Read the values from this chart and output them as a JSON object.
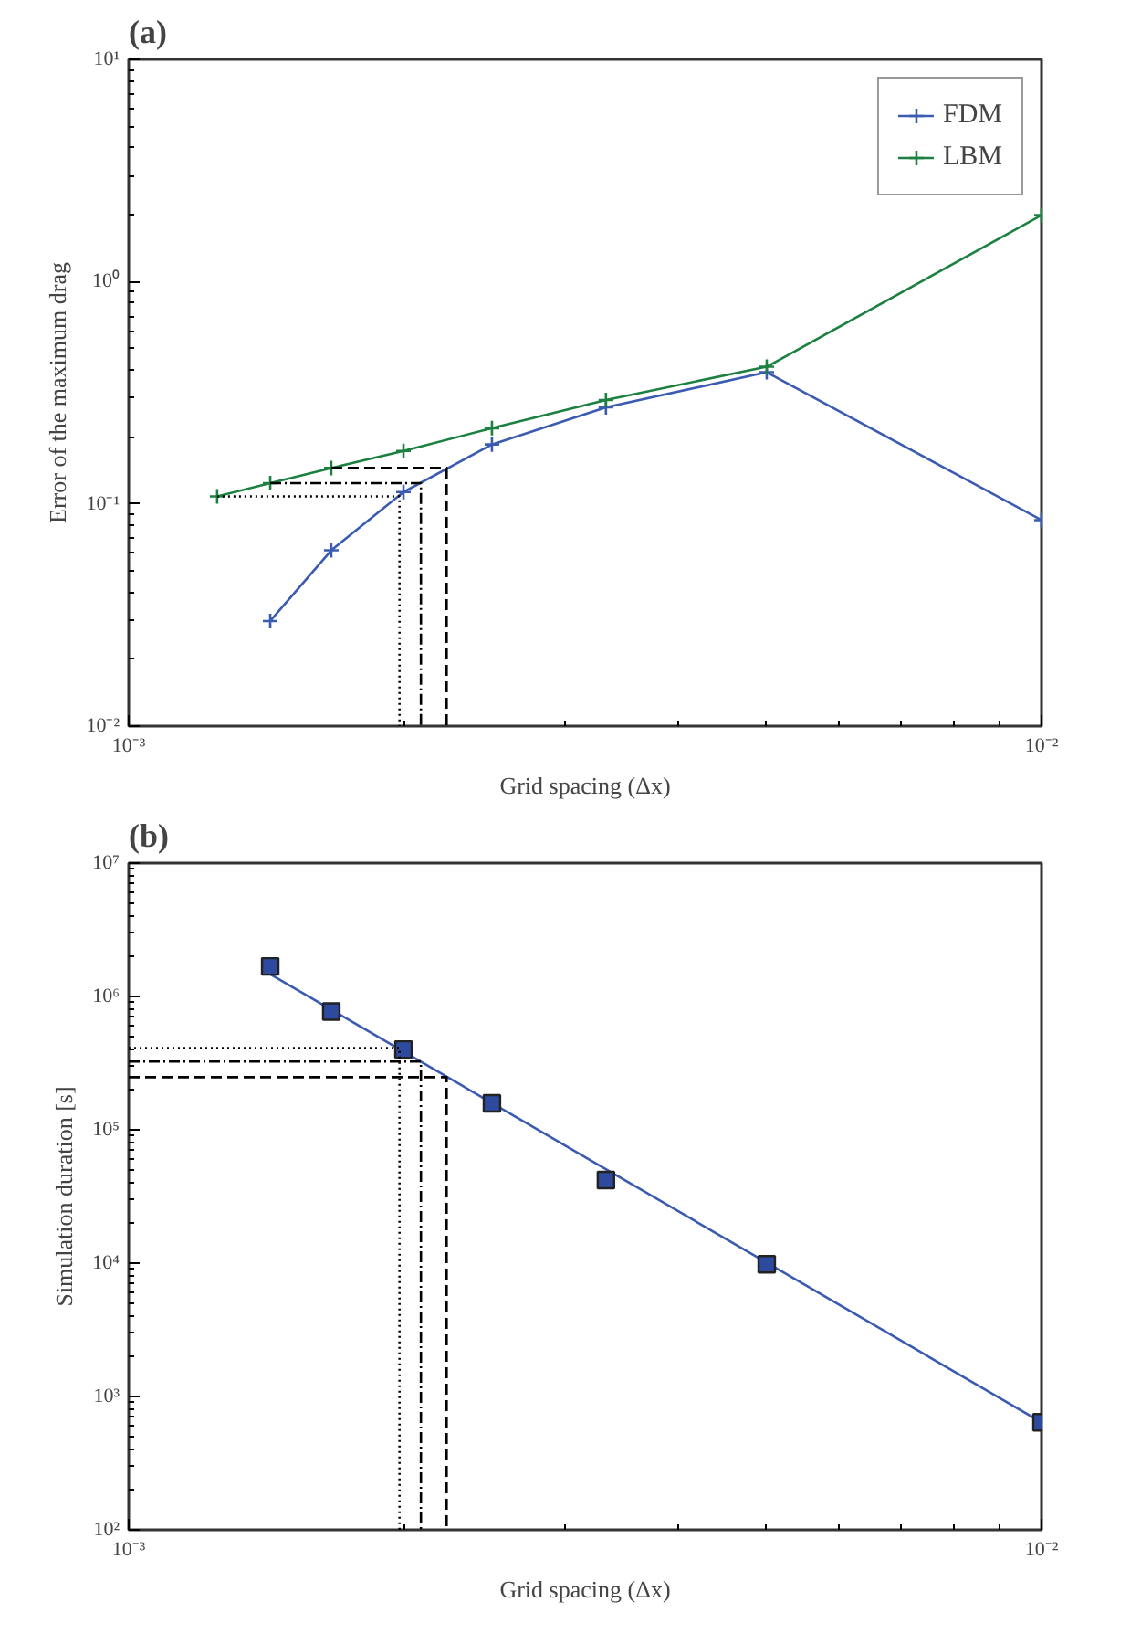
{
  "chart_data": [
    {
      "type": "line",
      "title": "(a)",
      "xlabel": "Grid spacing (Δx)",
      "ylabel": "Error of the maximum drag",
      "log": "xy",
      "grid": false,
      "legend": "top right",
      "xlim": [
        0.001,
        0.01
      ],
      "ylim": [
        0.01,
        10
      ],
      "xticks": [
        {
          "value": 0.001,
          "label": "10⁻³"
        },
        {
          "value": 0.01,
          "label": "10⁻²"
        }
      ],
      "yticks": [
        {
          "value": 0.01,
          "label": "10⁻²"
        },
        {
          "value": 0.1,
          "label": "10⁻¹"
        },
        {
          "value": 1,
          "label": "10⁰"
        },
        {
          "value": 10,
          "label": "10¹"
        }
      ],
      "series": [
        {
          "name": "FDM",
          "color": "#3a5bb0",
          "marker": "cross",
          "x": [
            0.001429,
            0.001667,
            0.002,
            0.0025,
            0.003333,
            0.005,
            0.01
          ],
          "values": [
            0.0297,
            0.0618,
            0.113,
            0.185,
            0.272,
            0.391,
            0.0845
          ]
        },
        {
          "name": "LBM",
          "color": "#1b8040",
          "marker": "cross",
          "x": [
            0.00125,
            0.001429,
            0.001667,
            0.002,
            0.0025,
            0.003333,
            0.005,
            0.01
          ],
          "values": [
            0.108,
            0.124,
            0.145,
            0.173,
            0.219,
            0.293,
            0.414,
            1.99
          ]
        },
        {
          "color": "#000000",
          "line_style": "dotted",
          "marker": "none",
          "x": [
            0.00125,
            0.00198,
            0.00198
          ],
          "values": [
            0.108,
            0.108,
            0.01
          ]
        },
        {
          "color": "#000000",
          "line_style": "dashdot",
          "marker": "none",
          "x": [
            0.001429,
            0.00209,
            0.00209
          ],
          "values": [
            0.124,
            0.124,
            0.01
          ]
        },
        {
          "color": "#000000",
          "line_style": "dashed",
          "marker": "none",
          "x": [
            0.001667,
            0.00223,
            0.00223
          ],
          "values": [
            0.145,
            0.145,
            0.01
          ]
        }
      ]
    },
    {
      "type": "line",
      "title": "(b)",
      "xlabel": "Grid spacing (Δx)",
      "ylabel": "Simulation duration [s]",
      "log": "xy",
      "grid": false,
      "xlim": [
        0.001,
        0.01
      ],
      "ylim": [
        100,
        10000000
      ],
      "xticks": [
        {
          "value": 0.001,
          "label": "10⁻³"
        },
        {
          "value": 0.01,
          "label": "10⁻²"
        }
      ],
      "yticks": [
        {
          "value": 100,
          "label": "10²"
        },
        {
          "value": 1000,
          "label": "10³"
        },
        {
          "value": 10000,
          "label": "10⁴"
        },
        {
          "value": 100000,
          "label": "10⁵"
        },
        {
          "value": 1000000,
          "label": "10⁶"
        },
        {
          "value": 10000000,
          "label": "10⁷"
        }
      ],
      "series": [
        {
          "type": "line",
          "color": "#3a5bb0",
          "marker": "none",
          "x": [
            0.001429,
            0.01
          ],
          "values": [
            1470000,
            640
          ]
        },
        {
          "type": "scatter",
          "color": "#2e4a9e",
          "marker": "square",
          "x": [
            0.001429,
            0.001667,
            0.002,
            0.0025,
            0.003333,
            0.005,
            0.01
          ],
          "values": [
            1680000,
            770000,
            400000,
            158000,
            42000,
            9800,
            640
          ]
        },
        {
          "color": "#000000",
          "line_style": "dotted",
          "marker": "none",
          "x": [
            0.001,
            0.00198,
            0.00198
          ],
          "values": [
            410000,
            410000,
            100
          ]
        },
        {
          "color": "#000000",
          "line_style": "dashdot",
          "marker": "none",
          "x": [
            0.001,
            0.00209,
            0.00209
          ],
          "values": [
            325000,
            325000,
            100
          ]
        },
        {
          "color": "#000000",
          "line_style": "dashed",
          "marker": "none",
          "x": [
            0.001,
            0.00223,
            0.00223
          ],
          "values": [
            248000,
            248000,
            100
          ]
        }
      ]
    }
  ]
}
